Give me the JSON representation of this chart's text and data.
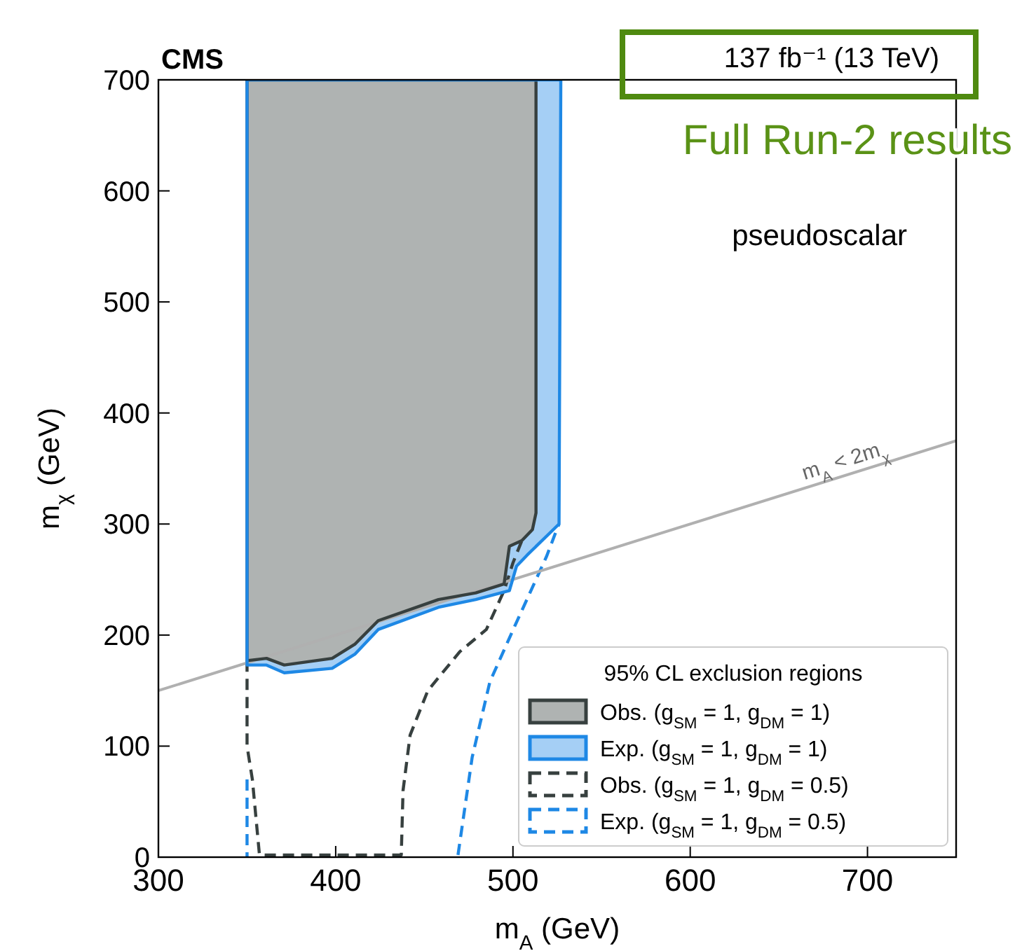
{
  "chart_data": {
    "type": "area",
    "title": "CMS",
    "subtitle": "137 fb⁻¹ (13 TeV)",
    "xlabel": "m$_{A}$ (GeV)",
    "ylabel": "m$_{χ}$ (GeV)",
    "legend_title": "95% CL exclusion regions",
    "annotations": [
      "Full Run-2 results",
      "pseudoscalar",
      {
        "text": "m$_{A}$ < 2m$_{χ}$",
        "x": 712,
        "y": 356
      }
    ],
    "xlim": [
      300,
      750
    ],
    "ylim": [
      0,
      700
    ],
    "xticks": [
      300,
      400,
      500,
      600,
      700
    ],
    "yticks": [
      0,
      100,
      200,
      300,
      400,
      500,
      600,
      700
    ],
    "grid": false,
    "legend": "bottom right",
    "series": [
      {
        "name": "Obs. (g$_{SM}$ = 1, g$_{DM}$ = 1)",
        "color": "#37403f",
        "x": [
          350,
          350,
          361,
          371,
          398,
          411,
          424,
          458,
          479,
          495,
          498,
          505,
          511,
          513,
          513
        ],
        "values": [
          700,
          177,
          179,
          173,
          179,
          192,
          213,
          232,
          238,
          246,
          280,
          285,
          295,
          310,
          700
        ]
      },
      {
        "name": "Exp. (g$_{SM}$ = 1, g$_{DM}$ = 1)",
        "color": "#1e88e5",
        "x": [
          350,
          350,
          361,
          371,
          398,
          411,
          424,
          458,
          479,
          498,
          502,
          508,
          526,
          527
        ],
        "values": [
          700,
          173,
          173,
          166,
          170,
          183,
          205,
          225,
          232,
          240,
          262,
          272,
          300,
          700
        ]
      },
      {
        "name": "Obs. (g$_{SM}$ = 1, g$_{DM}$ = 0.5)",
        "type": "line",
        "line_style": "dashed",
        "color": "#37403f",
        "x": [
          350,
          350,
          353,
          357,
          437,
          438,
          442,
          452,
          470,
          485,
          495,
          500,
          505
        ],
        "values": [
          177,
          100,
          70,
          2,
          2,
          60,
          110,
          150,
          185,
          205,
          240,
          265,
          285
        ]
      },
      {
        "name": "Exp. (g$_{SM}$ = 1, g$_{DM}$ = 0.5)",
        "type": "line",
        "line_style": "dashed",
        "color": "#1e88e5",
        "x": [
          350,
          350,
          400,
          469,
          477,
          487,
          501,
          519,
          524,
          526
        ],
        "values": [
          70,
          0,
          null,
          2,
          90,
          158,
          208,
          271,
          292,
          300
        ]
      },
      {
        "type": "line",
        "color": "#b0b0b0",
        "x": [
          300,
          750
        ],
        "values": [
          150,
          375
        ]
      }
    ]
  }
}
